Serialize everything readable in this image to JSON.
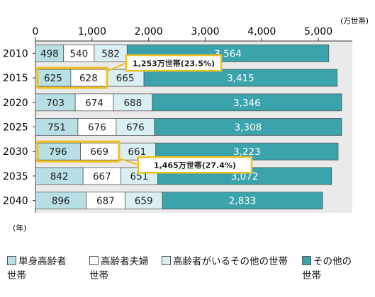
{
  "colors": {
    "single": "#b7dfe4",
    "couple": "#ffffff",
    "withElderly": "#daeff1",
    "other": "#3aa3ac",
    "plotBg": "#eaeaea",
    "highlight": "#f0c020"
  },
  "chart_data": {
    "type": "bar",
    "orientation": "horizontal",
    "stacked": true,
    "unit": "(万世帯)",
    "year_unit": "(年)",
    "xlim": [
      0,
      5600
    ],
    "x_ticks": [
      "0",
      "1,000",
      "2,000",
      "3,000",
      "4,000",
      "5,000"
    ],
    "categories": [
      "2010",
      "2015",
      "2020",
      "2025",
      "2030",
      "2035",
      "2040"
    ],
    "series": [
      {
        "name": "単身高齢者世帯",
        "values": [
          498,
          625,
          703,
          751,
          796,
          842,
          896
        ],
        "labels": [
          "498",
          "625",
          "703",
          "751",
          "796",
          "842",
          "896"
        ]
      },
      {
        "name": "高齢者夫婦世帯",
        "values": [
          540,
          628,
          674,
          676,
          669,
          667,
          687
        ],
        "labels": [
          "540",
          "628",
          "674",
          "676",
          "669",
          "667",
          "687"
        ]
      },
      {
        "name": "高齢者がいるその他の世帯",
        "values": [
          582,
          665,
          688,
          676,
          661,
          651,
          659
        ],
        "labels": [
          "582",
          "665",
          "688",
          "676",
          "661",
          "651",
          "659"
        ]
      },
      {
        "name": "その他の世帯",
        "values": [
          3564,
          3415,
          3346,
          3308,
          3223,
          3072,
          2833
        ],
        "labels": [
          "3,564",
          "3,415",
          "3,346",
          "3,308",
          "3,223",
          "3,072",
          "2,833"
        ]
      }
    ],
    "annotations": [
      {
        "category": "2015",
        "text": "1,253万世帯(23.5%)"
      },
      {
        "category": "2030",
        "text": "1,465万世帯(27.4%)"
      }
    ],
    "grid": false
  },
  "legend": [
    {
      "line1": "単身高齢者",
      "line2": "世帯"
    },
    {
      "line1": "高齢者夫婦",
      "line2": "世帯"
    },
    {
      "line1": "高齢者がいるその他の世帯",
      "line2": ""
    },
    {
      "line1": "その他の",
      "line2": "世帯"
    }
  ]
}
